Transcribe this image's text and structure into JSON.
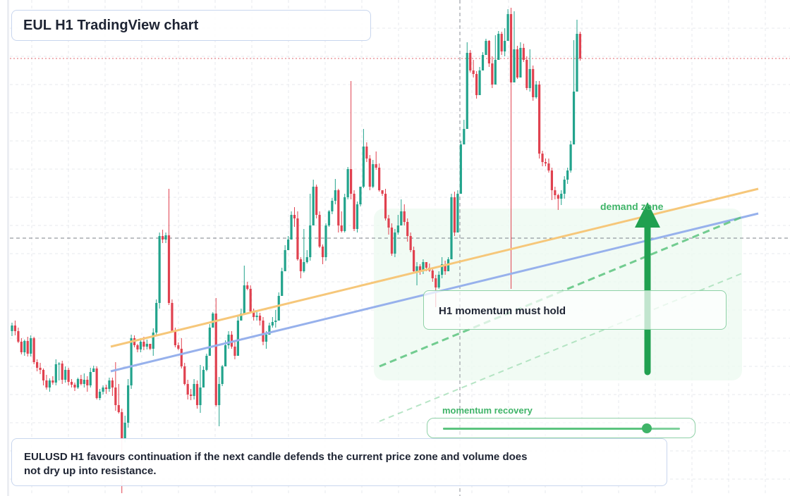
{
  "title": "EUL H1 TradingView chart",
  "annotations": {
    "signal": "H1 momentum must hold",
    "demand_zone": "demand zone",
    "momentum_label": "momentum recovery",
    "momentum_level": 0.86,
    "note": "EULUSD H1 favours continuation if the next candle defends the current price zone and volume does not dry up into resistance."
  },
  "colors": {
    "bull": "#22a38c",
    "bear": "#e0414f",
    "resistance_line": "#f6c77a",
    "support_line": "#97b1ec",
    "accent": "#3fb468",
    "grid": "#e7e9ee"
  },
  "chart_data": {
    "type": "candlestick",
    "timeframe": "H1",
    "symbol": "EULUSD",
    "grid": true,
    "candles_ohlc": [
      [
        470,
        462,
        477,
        458
      ],
      [
        462,
        470,
        476,
        455
      ],
      [
        470,
        485,
        487,
        465
      ],
      [
        485,
        500,
        503,
        480
      ],
      [
        500,
        484,
        505,
        482
      ],
      [
        484,
        502,
        506,
        478
      ],
      [
        502,
        480,
        506,
        476
      ],
      [
        480,
        514,
        517,
        478
      ],
      [
        514,
        522,
        527,
        510
      ],
      [
        522,
        525,
        531,
        515
      ],
      [
        525,
        540,
        547,
        523
      ],
      [
        540,
        550,
        553,
        532
      ],
      [
        550,
        540,
        556,
        537
      ],
      [
        540,
        543,
        546,
        534
      ],
      [
        543,
        517,
        547,
        510
      ],
      [
        517,
        516,
        540,
        514
      ],
      [
        516,
        539,
        545,
        512
      ],
      [
        539,
        525,
        543,
        520
      ],
      [
        525,
        542,
        547,
        522
      ],
      [
        542,
        546,
        550,
        538
      ],
      [
        546,
        550,
        555,
        543
      ],
      [
        550,
        538,
        552,
        536
      ],
      [
        538,
        545,
        547,
        532
      ],
      [
        545,
        539,
        550,
        530
      ],
      [
        539,
        547,
        556,
        534
      ],
      [
        547,
        528,
        550,
        522
      ],
      [
        528,
        523,
        526,
        519
      ],
      [
        523,
        565,
        567,
        520
      ],
      [
        565,
        556,
        568,
        552
      ],
      [
        556,
        550,
        560,
        547
      ],
      [
        550,
        552,
        559,
        546
      ],
      [
        552,
        540,
        556,
        536
      ],
      [
        540,
        550,
        562,
        536
      ],
      [
        550,
        575,
        583,
        514
      ],
      [
        575,
        585,
        587,
        545
      ],
      [
        585,
        622,
        700,
        580
      ],
      [
        622,
        600,
        628,
        590
      ],
      [
        600,
        547,
        607,
        538
      ],
      [
        547,
        480,
        552,
        475
      ],
      [
        480,
        490,
        493,
        476
      ],
      [
        490,
        496,
        500,
        488
      ],
      [
        496,
        485,
        500,
        480
      ],
      [
        485,
        492,
        497,
        478
      ],
      [
        492,
        488,
        496,
        482
      ],
      [
        488,
        495,
        497,
        488
      ],
      [
        495,
        472,
        505,
        466
      ],
      [
        472,
        430,
        475,
        425
      ],
      [
        430,
        335,
        438,
        330
      ],
      [
        335,
        340,
        345,
        326
      ],
      [
        340,
        334,
        345,
        330
      ],
      [
        334,
        430,
        433,
        268
      ],
      [
        430,
        470,
        472,
        425
      ],
      [
        470,
        490,
        493,
        465
      ],
      [
        490,
        495,
        497,
        486
      ],
      [
        495,
        520,
        523,
        480
      ],
      [
        520,
        545,
        547,
        515
      ],
      [
        545,
        560,
        567,
        539
      ],
      [
        560,
        562,
        568,
        552
      ],
      [
        562,
        545,
        567,
        538
      ],
      [
        545,
        575,
        580,
        540
      ],
      [
        575,
        550,
        586,
        518
      ],
      [
        550,
        525,
        530,
        520
      ],
      [
        525,
        505,
        527,
        502
      ],
      [
        505,
        465,
        469,
        460
      ],
      [
        465,
        445,
        449,
        443
      ],
      [
        445,
        575,
        577,
        423
      ],
      [
        575,
        545,
        605,
        535
      ],
      [
        545,
        520,
        548,
        518
      ],
      [
        520,
        490,
        495,
        483
      ],
      [
        490,
        475,
        495,
        470
      ],
      [
        475,
        492,
        495,
        470
      ],
      [
        492,
        505,
        510,
        485
      ],
      [
        505,
        455,
        457,
        447
      ],
      [
        455,
        445,
        452,
        438
      ],
      [
        445,
        405,
        410,
        377
      ],
      [
        405,
        410,
        412,
        400
      ],
      [
        410,
        442,
        445,
        405
      ],
      [
        442,
        450,
        455,
        438
      ],
      [
        450,
        448,
        455,
        441
      ],
      [
        448,
        455,
        462,
        444
      ],
      [
        455,
        485,
        490,
        450
      ],
      [
        485,
        475,
        495,
        470
      ],
      [
        475,
        462,
        470,
        458
      ],
      [
        462,
        457,
        465,
        450
      ],
      [
        457,
        455,
        465,
        440
      ],
      [
        455,
        420,
        445,
        415
      ],
      [
        420,
        385,
        420,
        380
      ],
      [
        385,
        355,
        365,
        348
      ],
      [
        355,
        340,
        348,
        335
      ],
      [
        340,
        305,
        337,
        300
      ],
      [
        305,
        310,
        322,
        294
      ],
      [
        310,
        368,
        370,
        300
      ],
      [
        368,
        385,
        395,
        365
      ],
      [
        385,
        372,
        387,
        325
      ],
      [
        372,
        365,
        374,
        355
      ],
      [
        365,
        320,
        370,
        275
      ],
      [
        320,
        265,
        305,
        255
      ],
      [
        265,
        305,
        310,
        262
      ],
      [
        305,
        350,
        352,
        300
      ],
      [
        350,
        365,
        375,
        347
      ],
      [
        365,
        320,
        370,
        317
      ],
      [
        320,
        300,
        322,
        298
      ],
      [
        300,
        285,
        304,
        281
      ],
      [
        285,
        270,
        290,
        254
      ],
      [
        270,
        320,
        330,
        268
      ],
      [
        320,
        328,
        330,
        300
      ],
      [
        328,
        280,
        330,
        275
      ],
      [
        280,
        240,
        283,
        237
      ],
      [
        240,
        275,
        283,
        115
      ],
      [
        275,
        325,
        328,
        270
      ],
      [
        325,
        290,
        330,
        286
      ],
      [
        290,
        265,
        293,
        265
      ],
      [
        265,
        208,
        267,
        183
      ],
      [
        208,
        225,
        230,
        202
      ],
      [
        225,
        265,
        270,
        220
      ],
      [
        265,
        233,
        267,
        227
      ],
      [
        233,
        238,
        241,
        215
      ],
      [
        238,
        270,
        272,
        232
      ],
      [
        270,
        275,
        278,
        272
      ],
      [
        275,
        310,
        313,
        268
      ],
      [
        310,
        323,
        333,
        305
      ],
      [
        323,
        360,
        363,
        317
      ],
      [
        360,
        330,
        365,
        325
      ],
      [
        330,
        320,
        333,
        305
      ],
      [
        320,
        300,
        305,
        283
      ],
      [
        300,
        315,
        320,
        290
      ],
      [
        315,
        335,
        343,
        310
      ],
      [
        335,
        355,
        358,
        330
      ],
      [
        355,
        385,
        388,
        350
      ],
      [
        385,
        378,
        405,
        372
      ],
      [
        378,
        385,
        390,
        375
      ],
      [
        385,
        372,
        389,
        368
      ],
      [
        372,
        380,
        385,
        375
      ],
      [
        380,
        384,
        386,
        374
      ],
      [
        384,
        395,
        400,
        380
      ],
      [
        395,
        408,
        436,
        390
      ],
      [
        408,
        390,
        410,
        385
      ],
      [
        390,
        375,
        395,
        365
      ],
      [
        375,
        385,
        390,
        370
      ],
      [
        385,
        368,
        370,
        365
      ],
      [
        368,
        280,
        283,
        275
      ],
      [
        280,
        330,
        335,
        272
      ],
      [
        330,
        275,
        278,
        270
      ],
      [
        275,
        205,
        275,
        200
      ],
      [
        205,
        183,
        187,
        170
      ],
      [
        183,
        75,
        79,
        60
      ],
      [
        75,
        100,
        103,
        71
      ],
      [
        100,
        105,
        110,
        85
      ],
      [
        105,
        135,
        140,
        101
      ],
      [
        135,
        100,
        104,
        95
      ],
      [
        100,
        78,
        82,
        74
      ],
      [
        78,
        58,
        60,
        55
      ],
      [
        58,
        90,
        95,
        57
      ],
      [
        90,
        120,
        125,
        80
      ],
      [
        120,
        85,
        110,
        50
      ],
      [
        85,
        48,
        51,
        44
      ],
      [
        48,
        73,
        78,
        45
      ],
      [
        73,
        58,
        80,
        40
      ],
      [
        58,
        20,
        25,
        13
      ],
      [
        20,
        117,
        410,
        11
      ],
      [
        117,
        70,
        74,
        16
      ],
      [
        70,
        110,
        112,
        65
      ],
      [
        110,
        68,
        75,
        60
      ],
      [
        68,
        85,
        88,
        62
      ],
      [
        85,
        125,
        128,
        80
      ],
      [
        125,
        98,
        130,
        70
      ],
      [
        98,
        138,
        143,
        93
      ],
      [
        138,
        120,
        140,
        115
      ],
      [
        120,
        218,
        225,
        115
      ],
      [
        218,
        230,
        236,
        214
      ],
      [
        230,
        232,
        236,
        225
      ],
      [
        232,
        242,
        245,
        225
      ],
      [
        242,
        270,
        284,
        238
      ],
      [
        270,
        277,
        283,
        265
      ],
      [
        277,
        282,
        298,
        275
      ],
      [
        282,
        275,
        291,
        270
      ],
      [
        275,
        255,
        282,
        250
      ],
      [
        255,
        242,
        261,
        238
      ],
      [
        242,
        205,
        245,
        200
      ],
      [
        205,
        130,
        202,
        57
      ],
      [
        130,
        48,
        50,
        28
      ],
      [
        48,
        83,
        86,
        45
      ]
    ]
  }
}
